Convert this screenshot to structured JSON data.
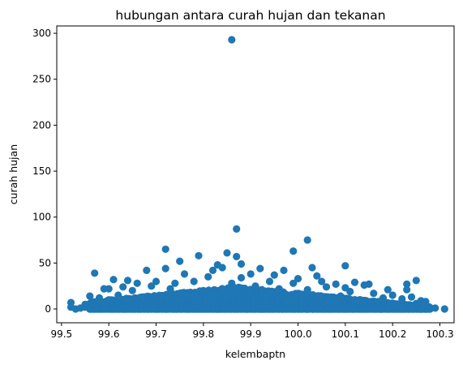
{
  "chart_data": {
    "type": "scatter",
    "title": "hubungan antara curah hujan dan tekanan",
    "xlabel": "kelembaptn",
    "ylabel": "curah hujan",
    "xlim": [
      99.49,
      100.33
    ],
    "ylim": [
      -15,
      308
    ],
    "xticks": [
      99.5,
      99.6,
      99.7,
      99.8,
      99.9,
      100.0,
      100.1,
      100.2,
      100.3
    ],
    "xtick_labels": [
      "99.5",
      "99.6",
      "99.7",
      "99.8",
      "99.9",
      "100.0",
      "100.1",
      "100.2",
      "100.3"
    ],
    "yticks": [
      0,
      50,
      100,
      150,
      200,
      250,
      300
    ],
    "ytick_labels": [
      "0",
      "50",
      "100",
      "150",
      "200",
      "250",
      "300"
    ],
    "grid": false,
    "marker_color": "#1f77b4",
    "points": [
      [
        99.86,
        293
      ],
      [
        99.87,
        87
      ],
      [
        100.02,
        75
      ],
      [
        99.72,
        65
      ],
      [
        99.99,
        63
      ],
      [
        99.85,
        61
      ],
      [
        99.79,
        58
      ],
      [
        99.87,
        57
      ],
      [
        99.75,
        52
      ],
      [
        99.88,
        49
      ],
      [
        99.83,
        48
      ],
      [
        100.1,
        47
      ],
      [
        100.03,
        45
      ],
      [
        99.84,
        45
      ],
      [
        99.72,
        44
      ],
      [
        99.92,
        44
      ],
      [
        99.68,
        42
      ],
      [
        99.82,
        42
      ],
      [
        99.97,
        42
      ],
      [
        99.57,
        39
      ],
      [
        99.76,
        38
      ],
      [
        99.9,
        38
      ],
      [
        99.95,
        37
      ],
      [
        100.04,
        36
      ],
      [
        99.81,
        35
      ],
      [
        99.88,
        34
      ],
      [
        100.0,
        33
      ],
      [
        99.61,
        32
      ],
      [
        100.25,
        31
      ],
      [
        99.64,
        31
      ],
      [
        99.7,
        30
      ],
      [
        99.78,
        30
      ],
      [
        99.94,
        30
      ],
      [
        100.05,
        30
      ],
      [
        100.12,
        29
      ],
      [
        99.66,
        28
      ],
      [
        99.74,
        28
      ],
      [
        99.86,
        28
      ],
      [
        99.99,
        28
      ],
      [
        100.15,
        27
      ],
      [
        100.08,
        27
      ],
      [
        100.23,
        27
      ],
      [
        100.14,
        26
      ],
      [
        99.69,
        25
      ],
      [
        99.91,
        25
      ],
      [
        100.06,
        24
      ],
      [
        99.63,
        24
      ],
      [
        99.6,
        22
      ],
      [
        99.59,
        22
      ],
      [
        100.23,
        21
      ],
      [
        100.19,
        21
      ],
      [
        100.1,
        23
      ],
      [
        99.73,
        22
      ],
      [
        99.96,
        22
      ],
      [
        100.02,
        21
      ],
      [
        99.65,
        20
      ],
      [
        99.8,
        20
      ],
      [
        100.16,
        17
      ],
      [
        100.11,
        19
      ],
      [
        100.2,
        15
      ],
      [
        99.56,
        14
      ],
      [
        99.62,
        15
      ],
      [
        99.58,
        12
      ],
      [
        99.67,
        13
      ],
      [
        99.77,
        14
      ],
      [
        99.93,
        13
      ],
      [
        100.01,
        14
      ],
      [
        100.09,
        14
      ],
      [
        100.18,
        12
      ],
      [
        100.22,
        11
      ],
      [
        100.24,
        13
      ],
      [
        100.26,
        9
      ],
      [
        100.27,
        8
      ],
      [
        99.6,
        10
      ],
      [
        99.64,
        9
      ],
      [
        99.71,
        10
      ],
      [
        99.85,
        11
      ],
      [
        99.98,
        9
      ],
      [
        100.13,
        10
      ],
      [
        100.17,
        8
      ],
      [
        99.52,
        7
      ],
      [
        99.58,
        6
      ],
      [
        99.55,
        5
      ],
      [
        100.21,
        5
      ],
      [
        100.25,
        6
      ],
      [
        100.28,
        1
      ],
      [
        100.31,
        0
      ],
      [
        99.52,
        2
      ],
      [
        99.53,
        0
      ],
      [
        99.54,
        1
      ],
      [
        99.55,
        2
      ],
      [
        99.56,
        1
      ],
      [
        100.29,
        1
      ],
      [
        100.27,
        3
      ],
      [
        100.24,
        2
      ],
      [
        99.57,
        4
      ],
      [
        99.59,
        3
      ],
      [
        100.19,
        3
      ],
      [
        100.22,
        2
      ],
      [
        100.26,
        0
      ]
    ],
    "dense_band": {
      "x_start": 99.56,
      "x_end": 100.28,
      "peak_x": 99.87,
      "max_height": 24,
      "min_height": 2,
      "seed": 7
    }
  }
}
